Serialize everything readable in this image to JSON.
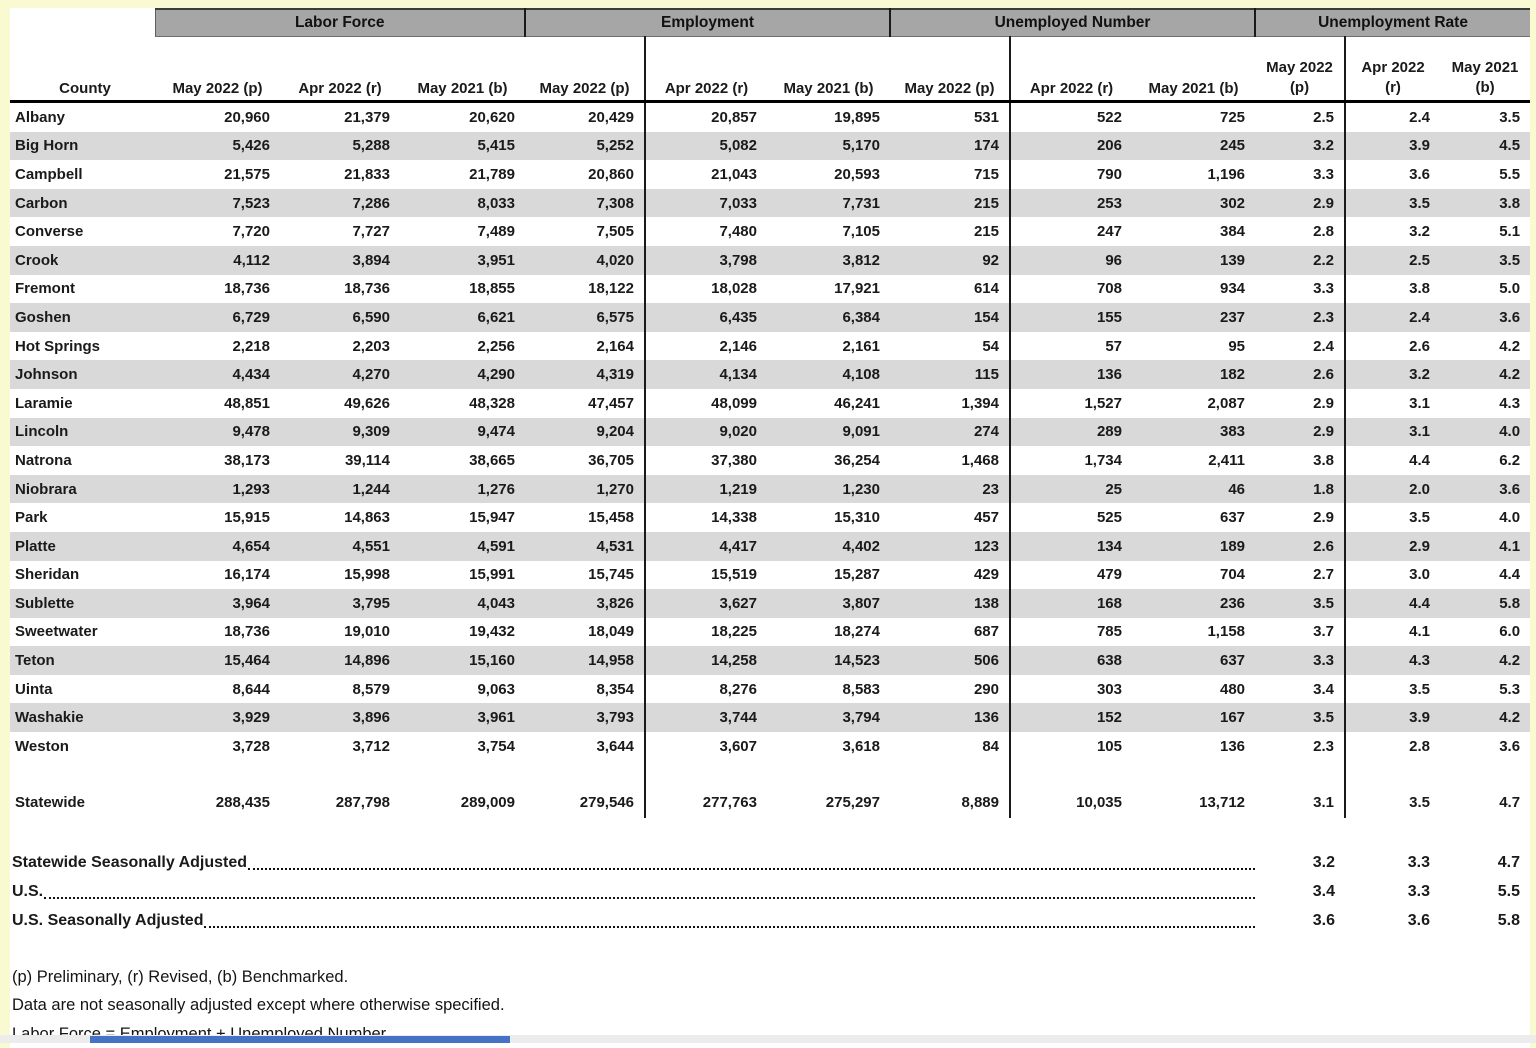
{
  "table": {
    "corner_label": "County",
    "groups": [
      {
        "label": "Labor Force",
        "columns": [
          "May 2022 (p)",
          "Apr 2022 (r)",
          "May 2021 (b)"
        ]
      },
      {
        "label": "Employment",
        "columns": [
          "May 2022 (p)",
          "Apr 2022 (r)",
          "May 2021 (b)"
        ]
      },
      {
        "label": "Unemployed Number",
        "columns": [
          "May 2022 (p)",
          "Apr 2022 (r)",
          "May 2021 (b)"
        ]
      },
      {
        "label": "Unemployment Rate",
        "columns_two_line": [
          [
            "May 2022",
            "(p)"
          ],
          [
            "Apr 2022",
            "(r)"
          ],
          [
            "May 2021",
            "(b)"
          ]
        ]
      }
    ],
    "rows": [
      {
        "county": "Albany",
        "values": [
          "20,960",
          "21,379",
          "20,620",
          "20,429",
          "20,857",
          "19,895",
          "531",
          "522",
          "725",
          "2.5",
          "2.4",
          "3.5"
        ]
      },
      {
        "county": "Big Horn",
        "values": [
          "5,426",
          "5,288",
          "5,415",
          "5,252",
          "5,082",
          "5,170",
          "174",
          "206",
          "245",
          "3.2",
          "3.9",
          "4.5"
        ]
      },
      {
        "county": "Campbell",
        "values": [
          "21,575",
          "21,833",
          "21,789",
          "20,860",
          "21,043",
          "20,593",
          "715",
          "790",
          "1,196",
          "3.3",
          "3.6",
          "5.5"
        ]
      },
      {
        "county": "Carbon",
        "values": [
          "7,523",
          "7,286",
          "8,033",
          "7,308",
          "7,033",
          "7,731",
          "215",
          "253",
          "302",
          "2.9",
          "3.5",
          "3.8"
        ]
      },
      {
        "county": "Converse",
        "values": [
          "7,720",
          "7,727",
          "7,489",
          "7,505",
          "7,480",
          "7,105",
          "215",
          "247",
          "384",
          "2.8",
          "3.2",
          "5.1"
        ]
      },
      {
        "county": "Crook",
        "values": [
          "4,112",
          "3,894",
          "3,951",
          "4,020",
          "3,798",
          "3,812",
          "92",
          "96",
          "139",
          "2.2",
          "2.5",
          "3.5"
        ]
      },
      {
        "county": "Fremont",
        "values": [
          "18,736",
          "18,736",
          "18,855",
          "18,122",
          "18,028",
          "17,921",
          "614",
          "708",
          "934",
          "3.3",
          "3.8",
          "5.0"
        ]
      },
      {
        "county": "Goshen",
        "values": [
          "6,729",
          "6,590",
          "6,621",
          "6,575",
          "6,435",
          "6,384",
          "154",
          "155",
          "237",
          "2.3",
          "2.4",
          "3.6"
        ]
      },
      {
        "county": "Hot Springs",
        "values": [
          "2,218",
          "2,203",
          "2,256",
          "2,164",
          "2,146",
          "2,161",
          "54",
          "57",
          "95",
          "2.4",
          "2.6",
          "4.2"
        ]
      },
      {
        "county": "Johnson",
        "values": [
          "4,434",
          "4,270",
          "4,290",
          "4,319",
          "4,134",
          "4,108",
          "115",
          "136",
          "182",
          "2.6",
          "3.2",
          "4.2"
        ]
      },
      {
        "county": "Laramie",
        "values": [
          "48,851",
          "49,626",
          "48,328",
          "47,457",
          "48,099",
          "46,241",
          "1,394",
          "1,527",
          "2,087",
          "2.9",
          "3.1",
          "4.3"
        ]
      },
      {
        "county": "Lincoln",
        "values": [
          "9,478",
          "9,309",
          "9,474",
          "9,204",
          "9,020",
          "9,091",
          "274",
          "289",
          "383",
          "2.9",
          "3.1",
          "4.0"
        ]
      },
      {
        "county": "Natrona",
        "values": [
          "38,173",
          "39,114",
          "38,665",
          "36,705",
          "37,380",
          "36,254",
          "1,468",
          "1,734",
          "2,411",
          "3.8",
          "4.4",
          "6.2"
        ]
      },
      {
        "county": "Niobrara",
        "values": [
          "1,293",
          "1,244",
          "1,276",
          "1,270",
          "1,219",
          "1,230",
          "23",
          "25",
          "46",
          "1.8",
          "2.0",
          "3.6"
        ]
      },
      {
        "county": "Park",
        "values": [
          "15,915",
          "14,863",
          "15,947",
          "15,458",
          "14,338",
          "15,310",
          "457",
          "525",
          "637",
          "2.9",
          "3.5",
          "4.0"
        ]
      },
      {
        "county": "Platte",
        "values": [
          "4,654",
          "4,551",
          "4,591",
          "4,531",
          "4,417",
          "4,402",
          "123",
          "134",
          "189",
          "2.6",
          "2.9",
          "4.1"
        ]
      },
      {
        "county": "Sheridan",
        "values": [
          "16,174",
          "15,998",
          "15,991",
          "15,745",
          "15,519",
          "15,287",
          "429",
          "479",
          "704",
          "2.7",
          "3.0",
          "4.4"
        ]
      },
      {
        "county": "Sublette",
        "values": [
          "3,964",
          "3,795",
          "4,043",
          "3,826",
          "3,627",
          "3,807",
          "138",
          "168",
          "236",
          "3.5",
          "4.4",
          "5.8"
        ]
      },
      {
        "county": "Sweetwater",
        "values": [
          "18,736",
          "19,010",
          "19,432",
          "18,049",
          "18,225",
          "18,274",
          "687",
          "785",
          "1,158",
          "3.7",
          "4.1",
          "6.0"
        ]
      },
      {
        "county": "Teton",
        "values": [
          "15,464",
          "14,896",
          "15,160",
          "14,958",
          "14,258",
          "14,523",
          "506",
          "638",
          "637",
          "3.3",
          "4.3",
          "4.2"
        ]
      },
      {
        "county": "Uinta",
        "values": [
          "8,644",
          "8,579",
          "9,063",
          "8,354",
          "8,276",
          "8,583",
          "290",
          "303",
          "480",
          "3.4",
          "3.5",
          "5.3"
        ]
      },
      {
        "county": "Washakie",
        "values": [
          "3,929",
          "3,896",
          "3,961",
          "3,793",
          "3,744",
          "3,794",
          "136",
          "152",
          "167",
          "3.5",
          "3.9",
          "4.2"
        ]
      },
      {
        "county": "Weston",
        "values": [
          "3,728",
          "3,712",
          "3,754",
          "3,644",
          "3,607",
          "3,618",
          "84",
          "105",
          "136",
          "2.3",
          "2.8",
          "3.6"
        ]
      }
    ],
    "statewide": {
      "county": "Statewide",
      "values": [
        "288,435",
        "287,798",
        "289,009",
        "279,546",
        "277,763",
        "275,297",
        "8,889",
        "10,035",
        "13,712",
        "3.1",
        "3.5",
        "4.7"
      ]
    },
    "leader_rows": [
      {
        "label": "Statewide Seasonally Adjusted",
        "values": [
          "3.2",
          "3.3",
          "4.7"
        ]
      },
      {
        "label": "U.S.",
        "values": [
          "3.4",
          "3.3",
          "5.5"
        ]
      },
      {
        "label": "U.S. Seasonally Adjusted",
        "values": [
          "3.6",
          "3.6",
          "5.8"
        ]
      }
    ],
    "footnotes": [
      "(p) Preliminary, (r) Revised, (b) Benchmarked.",
      "Data are not seasonally adjusted except where otherwise specified.",
      "Labor Force = Employment + Unemployed Number"
    ],
    "colors": {
      "page_background": "#FAFAD2",
      "group_bar": "#A6A6A6",
      "row_stripe": "#D9D9D9",
      "text": "#1A1A1A",
      "bottom_bar": "#4472C4"
    }
  }
}
